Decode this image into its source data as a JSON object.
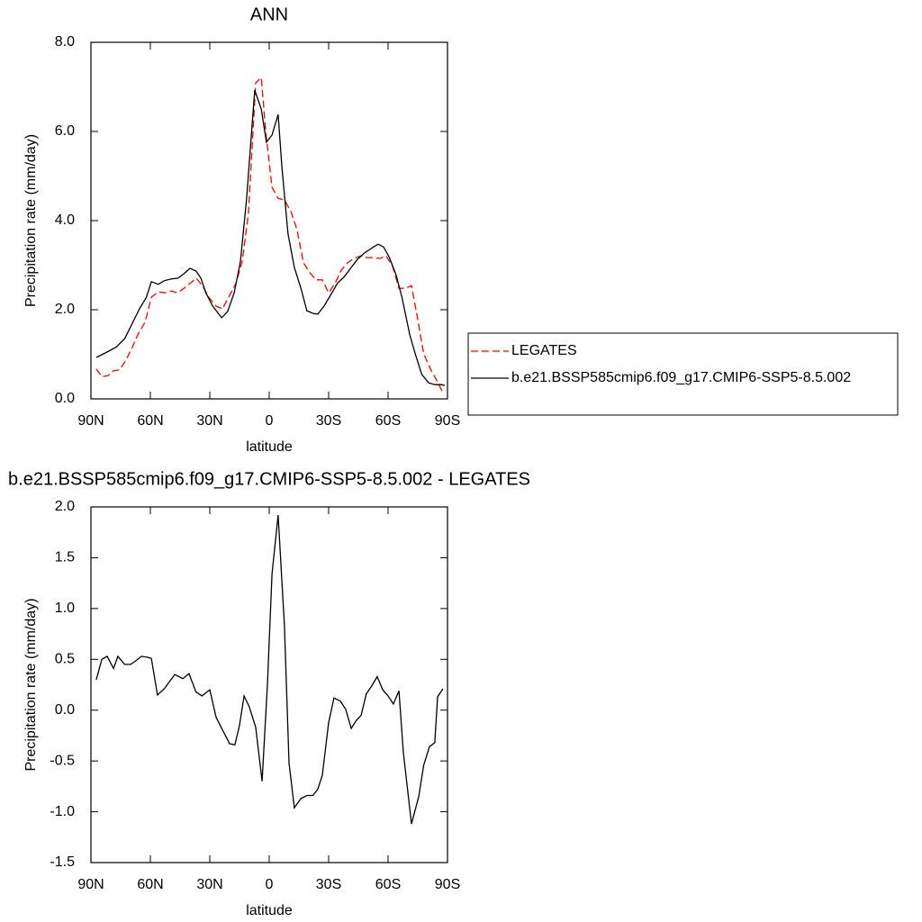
{
  "chart_data": [
    {
      "type": "line",
      "title": "ANN",
      "x_label": "latitude",
      "y_label": "Precipitation rate (mm/day)",
      "xlim": [
        90,
        -90
      ],
      "xticks": [
        {
          "value": 90,
          "label": "90N"
        },
        {
          "value": 60,
          "label": "60N"
        },
        {
          "value": 30,
          "label": "30N"
        },
        0,
        {
          "value": -30,
          "label": "30S"
        },
        {
          "value": -60,
          "label": "60S"
        },
        {
          "value": -90,
          "label": "90S"
        }
      ],
      "ylim": [
        0,
        8
      ],
      "yticks": [
        {
          "value": 0,
          "label": "0.0"
        },
        {
          "value": 2,
          "label": "2.0"
        },
        {
          "value": 4,
          "label": "4.0"
        },
        {
          "value": 6,
          "label": "6.0"
        },
        {
          "value": 8,
          "label": "8.0"
        }
      ],
      "legend": "right",
      "series": [
        {
          "name": "LEGATES",
          "color": "#ff0000",
          "line_style": "dashed",
          "x": [
            87.3,
            84.5,
            81.4,
            78.6,
            75.5,
            72.3,
            69,
            66,
            62.7,
            59.5,
            56,
            52.7,
            49.5,
            46.4,
            43,
            40,
            36.8,
            33.6,
            30.5,
            26.8,
            23.6,
            20.5,
            16.8,
            13.6,
            10.5,
            6.8,
            4,
            1.8,
            -1.4,
            -4.5,
            -7.7,
            -11,
            -14,
            -17.3,
            -20.5,
            -23.6,
            -26.8,
            -30,
            -33.2,
            -36.4,
            -39.5,
            -42.7,
            -46.4,
            -49.5,
            -52.7,
            -56,
            -59,
            -62.3,
            -65.5,
            -68.6,
            -71.8,
            -75,
            -78,
            -81.4,
            -84.5,
            -87.7
          ],
          "values": [
            0.67,
            0.5,
            0.52,
            0.63,
            0.65,
            0.87,
            1.17,
            1.47,
            1.72,
            2.28,
            2.4,
            2.38,
            2.42,
            2.38,
            2.48,
            2.59,
            2.71,
            2.53,
            2.28,
            2.08,
            2.02,
            2.28,
            2.59,
            3.09,
            4.16,
            7.09,
            7.21,
            6.02,
            4.75,
            4.5,
            4.46,
            4.2,
            3.8,
            3.05,
            2.83,
            2.67,
            2.67,
            2.38,
            2.59,
            2.89,
            3.05,
            3.15,
            3.21,
            3.17,
            3.17,
            3.15,
            3.21,
            2.97,
            2.48,
            2.48,
            2.54,
            1.78,
            1.01,
            0.67,
            0.42,
            0.14
          ]
        },
        {
          "name": "b.e21.BSSP585cmip6.f09_g17.CMIP6-SSP5-8.5.002",
          "color": "#000000",
          "line_style": "solid",
          "x": [
            87.3,
            81,
            77,
            73,
            69.5,
            65.5,
            62,
            59.5,
            56,
            53,
            49.5,
            46,
            43,
            40,
            37,
            34.5,
            32,
            28.5,
            24,
            21,
            17.7,
            14.5,
            11.4,
            7.3,
            4,
            1.4,
            -1.4,
            -4.5,
            -6.4,
            -9.5,
            -12.7,
            -16,
            -19,
            -22,
            -24.5,
            -27.7,
            -31.4,
            -34.5,
            -37.7,
            -41.4,
            -44.5,
            -48,
            -52,
            -55,
            -57.7,
            -60.5,
            -64,
            -67,
            -71,
            -74,
            -77,
            -80.5,
            -83.6,
            -87,
            -88.6
          ],
          "values": [
            0.93,
            1.07,
            1.17,
            1.35,
            1.66,
            2.02,
            2.28,
            2.63,
            2.57,
            2.65,
            2.69,
            2.71,
            2.81,
            2.93,
            2.87,
            2.71,
            2.38,
            2.08,
            1.82,
            1.96,
            2.38,
            3.09,
            4.5,
            6.93,
            6.5,
            5.76,
            5.92,
            6.38,
            5.2,
            3.7,
            2.95,
            2.48,
            1.98,
            1.92,
            1.9,
            2.08,
            2.36,
            2.6,
            2.73,
            2.95,
            3.13,
            3.27,
            3.39,
            3.47,
            3.41,
            3.19,
            2.79,
            2.28,
            1.43,
            0.97,
            0.55,
            0.36,
            0.32,
            0.32,
            0.3
          ]
        }
      ]
    },
    {
      "type": "line",
      "title": "b.e21.BSSP585cmip6.f09_g17.CMIP6-SSP5-8.5.002 - LEGATES",
      "x_label": "latitude",
      "y_label": "Precipitation rate (mm/day)",
      "xlim": [
        90,
        -90
      ],
      "xticks": [
        {
          "value": 90,
          "label": "90N"
        },
        {
          "value": 60,
          "label": "60N"
        },
        {
          "value": 30,
          "label": "30N"
        },
        0,
        {
          "value": -30,
          "label": "30S"
        },
        {
          "value": -60,
          "label": "60S"
        },
        {
          "value": -90,
          "label": "90S"
        }
      ],
      "ylim": [
        -1.5,
        2
      ],
      "yticks": [
        -1.5,
        {
          "value": -1,
          "label": "-1.0"
        },
        -0.5,
        {
          "value": 0,
          "label": "0.0"
        },
        0.5,
        {
          "value": 1,
          "label": "1.0"
        },
        1.5,
        {
          "value": 2,
          "label": "2.0"
        }
      ],
      "series": [
        {
          "color": "#000000",
          "line_style": "solid",
          "x": [
            87.3,
            84.5,
            81.8,
            78.6,
            76.4,
            73,
            70,
            67.7,
            64.5,
            61.4,
            59.5,
            56.4,
            53,
            50,
            47.7,
            43.6,
            40.5,
            37,
            34,
            30,
            26.8,
            23.2,
            20,
            17.3,
            15,
            12.7,
            10,
            6.8,
            3.6,
            0.9,
            -1.4,
            -4.5,
            -7.7,
            -10,
            -12.7,
            -16,
            -19,
            -22,
            -24.5,
            -26.8,
            -30,
            -32.7,
            -35.9,
            -38.6,
            -41.4,
            -44,
            -46.4,
            -49,
            -51.8,
            -54.5,
            -57.3,
            -60,
            -62.7,
            -65.5,
            -67.7,
            -71.8,
            -75.5,
            -78,
            -80.9,
            -83.6,
            -85,
            -87.7
          ],
          "values": [
            0.3,
            0.5,
            0.53,
            0.41,
            0.53,
            0.45,
            0.45,
            0.48,
            0.53,
            0.52,
            0.51,
            0.15,
            0.21,
            0.29,
            0.35,
            0.31,
            0.36,
            0.18,
            0.14,
            0.2,
            -0.07,
            -0.21,
            -0.33,
            -0.34,
            -0.15,
            0.14,
            0.03,
            -0.17,
            -0.7,
            0.25,
            1.34,
            1.92,
            0.83,
            -0.52,
            -0.96,
            -0.87,
            -0.84,
            -0.84,
            -0.78,
            -0.64,
            -0.12,
            0.12,
            0.09,
            0.01,
            -0.18,
            -0.1,
            -0.05,
            0.16,
            0.24,
            0.33,
            0.2,
            0.14,
            0.06,
            0.19,
            -0.41,
            -1.12,
            -0.85,
            -0.54,
            -0.36,
            -0.32,
            0.13,
            0.21
          ]
        }
      ]
    }
  ]
}
